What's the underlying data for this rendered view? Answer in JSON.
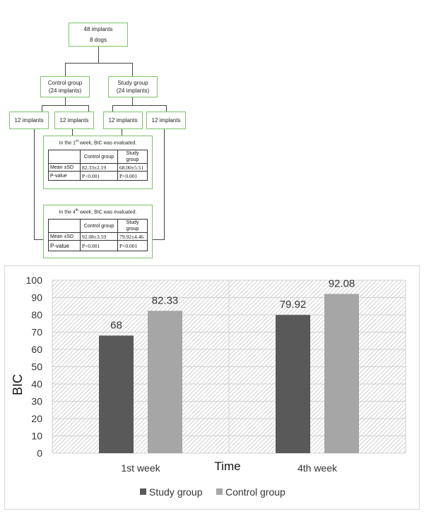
{
  "flowchart": {
    "top_box": {
      "line1": "48 implants",
      "line2": "8 dogs"
    },
    "control_box": {
      "line1": "Control group",
      "line2": "(24 implants)"
    },
    "study_box": {
      "line1": "Study group",
      "line2": "(24 implants)"
    },
    "subgroups": [
      "12 implants",
      "12 implants",
      "12 implants",
      "12 implants"
    ],
    "week1": {
      "caption_prefix": "In the 1",
      "caption_sup": "st",
      "caption_suffix": " week, BIC was evaluated.",
      "header": [
        "",
        "Control group",
        "Study group"
      ],
      "rows": [
        [
          "Mean ±SD",
          "82.33±2.19",
          "68.00±5.51"
        ],
        [
          "P-value",
          "P<0.001",
          "P<0.001"
        ]
      ]
    },
    "week4": {
      "caption_prefix": "In the 4",
      "caption_sup": "th",
      "caption_suffix": " week, BIC was evaluated.",
      "header": [
        "",
        "Control group",
        "Study group"
      ],
      "rows": [
        [
          "Mean ±SD",
          "92.08±3.59",
          "79.92±4.46"
        ],
        [
          "P-value",
          "P<0.001",
          "P<0.001"
        ]
      ]
    }
  },
  "chart_data": {
    "type": "bar",
    "categories": [
      "1st week",
      "4th week"
    ],
    "series": [
      {
        "name": "Study group",
        "values": [
          68,
          79.92
        ],
        "labels": [
          "68",
          "79.92"
        ],
        "color": "#595959"
      },
      {
        "name": "Control group",
        "values": [
          82.33,
          92.08
        ],
        "labels": [
          "82.33",
          "92.08"
        ],
        "color": "#a6a6a6"
      }
    ],
    "title": "",
    "xlabel": "Time",
    "ylabel": "BIC",
    "ylim": [
      0,
      100
    ],
    "yticks": [
      "0",
      "10",
      "20",
      "30",
      "40",
      "50",
      "60",
      "70",
      "80",
      "90",
      "100"
    ],
    "grid": true,
    "legend_position": "bottom"
  }
}
